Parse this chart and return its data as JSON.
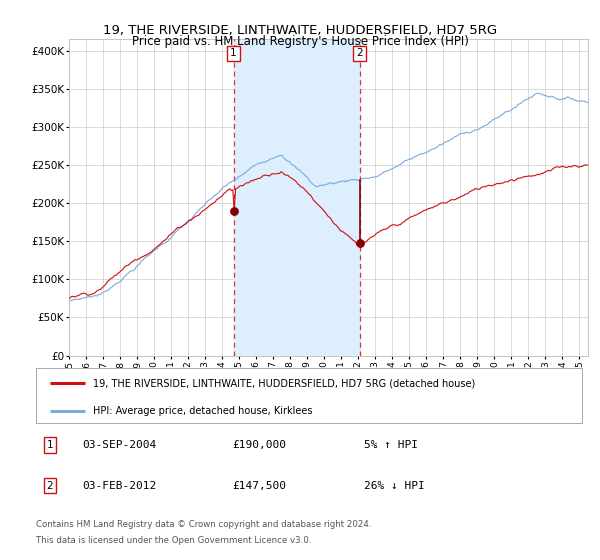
{
  "title": "19, THE RIVERSIDE, LINTHWAITE, HUDDERSFIELD, HD7 5RG",
  "subtitle": "Price paid vs. HM Land Registry's House Price Index (HPI)",
  "title_fontsize": 10,
  "subtitle_fontsize": 9,
  "ylabel_ticks": [
    "£0",
    "£50K",
    "£100K",
    "£150K",
    "£200K",
    "£250K",
    "£300K",
    "£350K",
    "£400K"
  ],
  "ytick_vals": [
    0,
    50000,
    100000,
    150000,
    200000,
    250000,
    300000,
    350000,
    400000
  ],
  "ylim": [
    0,
    415000
  ],
  "xlim_start": 1995.0,
  "xlim_end": 2025.5,
  "sale1_date": 2004.67,
  "sale1_price": 190000,
  "sale2_date": 2012.08,
  "sale2_price": 147500,
  "shade_color": "#ddeeff",
  "vline_color": "#dd3333",
  "red_line_color": "#cc1111",
  "blue_line_color": "#7aaadd",
  "dot_color": "#880000",
  "legend_line1": "19, THE RIVERSIDE, LINTHWAITE, HUDDERSFIELD, HD7 5RG (detached house)",
  "legend_line2": "HPI: Average price, detached house, Kirklees",
  "box1_date": "03-SEP-2004",
  "box1_price": "£190,000",
  "box1_hpi": "5% ↑ HPI",
  "box2_date": "03-FEB-2012",
  "box2_price": "£147,500",
  "box2_hpi": "26% ↓ HPI",
  "footer1": "Contains HM Land Registry data © Crown copyright and database right 2024.",
  "footer2": "This data is licensed under the Open Government Licence v3.0."
}
